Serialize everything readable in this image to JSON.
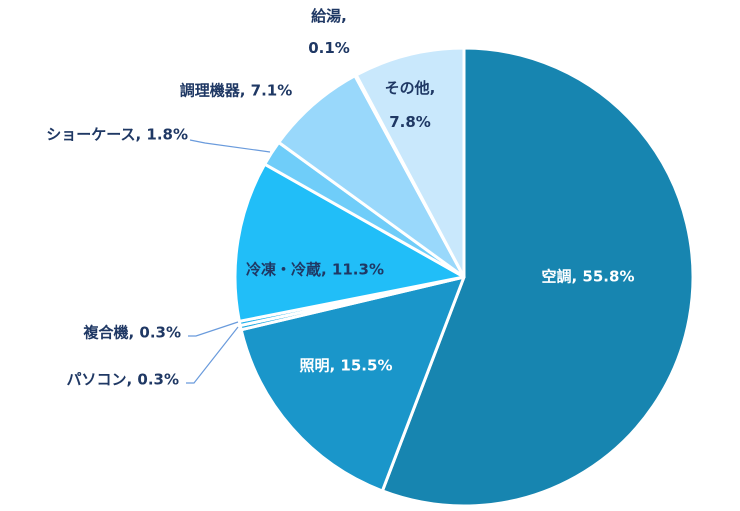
{
  "chart_data": {
    "type": "pie",
    "start_angle_deg": 0,
    "direction": "clockwise",
    "slices": [
      {
        "name": "空調",
        "value": 55.8,
        "label": "空調, 55.8%",
        "color": "#1785B0",
        "label_color": "#ffffff"
      },
      {
        "name": "照明",
        "value": 15.5,
        "label": "照明, 15.5%",
        "color": "#1A96CA",
        "label_color": "#ffffff"
      },
      {
        "name": "パソコン",
        "value": 0.3,
        "label": "パソコン, 0.3%",
        "color": "#1FA9E0",
        "label_color": "#1F3864"
      },
      {
        "name": "複合機",
        "value": 0.3,
        "label": "複合機, 0.3%",
        "color": "#22B2EC",
        "label_color": "#1F3864"
      },
      {
        "name": "冷凍・冷蔵",
        "value": 11.3,
        "label": "冷凍・冷蔵, 11.3%",
        "color": "#21BEF8",
        "label_color": "#1F3864"
      },
      {
        "name": "ショーケース",
        "value": 1.8,
        "label": "ショーケース, 1.8%",
        "color": "#6FCDF9",
        "label_color": "#1F3864"
      },
      {
        "name": "調理機器",
        "value": 7.1,
        "label": "調理機器, 7.1%",
        "color": "#99D8FB",
        "label_color": "#1F3864"
      },
      {
        "name": "給湯",
        "value": 0.1,
        "label": [
          "給湯,",
          "0.1%"
        ],
        "color": "#B3E2FC",
        "label_color": "#1F3864"
      },
      {
        "name": "その他",
        "value": 7.8,
        "label": [
          "その他,",
          "7.8%"
        ],
        "color": "#C9E8FC",
        "label_color": "#1F3864"
      }
    ],
    "leader_line_color": "#6A9BDC"
  }
}
